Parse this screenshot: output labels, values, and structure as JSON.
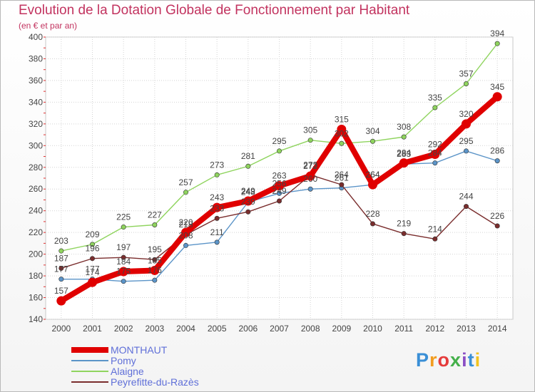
{
  "title": "Evolution de la Dotation Globale de Fonctionnement par Habitant",
  "subtitle": "(en € et par an)",
  "logo": {
    "text": "Proxiti"
  },
  "chart_data": {
    "type": "line",
    "x": [
      2000,
      2001,
      2002,
      2003,
      2004,
      2005,
      2006,
      2007,
      2008,
      2009,
      2010,
      2011,
      2012,
      2013,
      2014
    ],
    "ylim": [
      140,
      400
    ],
    "yticks": [
      140,
      160,
      180,
      200,
      220,
      240,
      260,
      280,
      300,
      320,
      340,
      360,
      380,
      400
    ],
    "grid": true,
    "legend_position": "bottom-left",
    "series": [
      {
        "name": "MONTHAUT",
        "color": "#e00000",
        "values": [
          157,
          174,
          184,
          185,
          220,
          243,
          249,
          263,
          272,
          315,
          264,
          284,
          292,
          320,
          345
        ],
        "labels": [
          "157",
          "174",
          "184",
          "185",
          "220",
          "243",
          "249",
          "263",
          "272",
          "315",
          "264",
          "284",
          "292",
          "320",
          "345"
        ]
      },
      {
        "name": "Pomy",
        "color": "#5b94c8",
        "values": [
          177,
          177,
          175,
          176,
          208,
          211,
          248,
          256,
          260,
          261,
          264,
          283,
          284,
          295,
          286
        ],
        "labels": [
          "177",
          "177",
          "175",
          "176",
          "208",
          "211",
          "248",
          "256",
          "260",
          "261",
          "264",
          "283",
          "284",
          "295",
          "286"
        ]
      },
      {
        "name": "Alaigne",
        "color": "#8fd45e",
        "values": [
          203,
          209,
          225,
          227,
          257,
          273,
          281,
          295,
          305,
          302,
          304,
          308,
          335,
          357,
          394
        ],
        "labels": [
          "203",
          "209",
          "225",
          "227",
          "257",
          "273",
          "281",
          "295",
          "305",
          "302",
          "304",
          "308",
          "335",
          "357",
          "394"
        ]
      },
      {
        "name": "Peyrefitte-du-Razès",
        "color": "#7a2d2d",
        "values": [
          187,
          196,
          197,
          195,
          218,
          233,
          239,
          249,
          273,
          264,
          228,
          219,
          214,
          244,
          226
        ],
        "labels": [
          "187",
          "196",
          "197",
          "195",
          "218",
          "233",
          "239",
          "249",
          "273",
          "264",
          "228",
          "219",
          "214",
          "244",
          "226"
        ]
      }
    ]
  }
}
